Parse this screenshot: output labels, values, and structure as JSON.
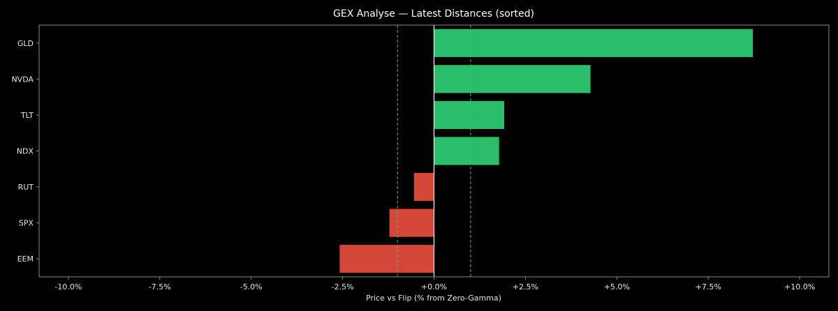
{
  "chart_data": {
    "type": "bar",
    "orientation": "horizontal",
    "title": "GEX Analyse — Latest Distances (sorted)",
    "xlabel": "Price vs Flip (% from Zero-Gamma)",
    "ylabel": "",
    "categories": [
      "GLD",
      "NVDA",
      "TLT",
      "NDX",
      "RUT",
      "SPX",
      "EEM"
    ],
    "values": [
      8.72,
      4.28,
      1.92,
      1.78,
      -0.55,
      -1.22,
      -2.58
    ],
    "xlim": [
      -10.8,
      10.8
    ],
    "xticks": [
      -10,
      -7.5,
      -5,
      -2.5,
      0,
      2.5,
      5,
      7.5,
      10
    ],
    "xtick_labels": [
      "-10.0%",
      "-7.5%",
      "-5.0%",
      "-2.5%",
      "+0.0%",
      "+2.5%",
      "+5.0%",
      "+7.5%",
      "+10.0%"
    ],
    "reference_lines": [
      {
        "x": -1.0,
        "style": "dashed",
        "color": "#2ecc71"
      },
      {
        "x": 1.0,
        "style": "dashed",
        "color": "#2ecc71"
      },
      {
        "x": 0.0,
        "style": "solid",
        "color": "#ffffff"
      }
    ],
    "colors": {
      "positive": "#2bbd6a",
      "negative": "#d44637",
      "background": "#000000",
      "axes": "#8a8a8a"
    },
    "grid": false,
    "legend": "none"
  }
}
